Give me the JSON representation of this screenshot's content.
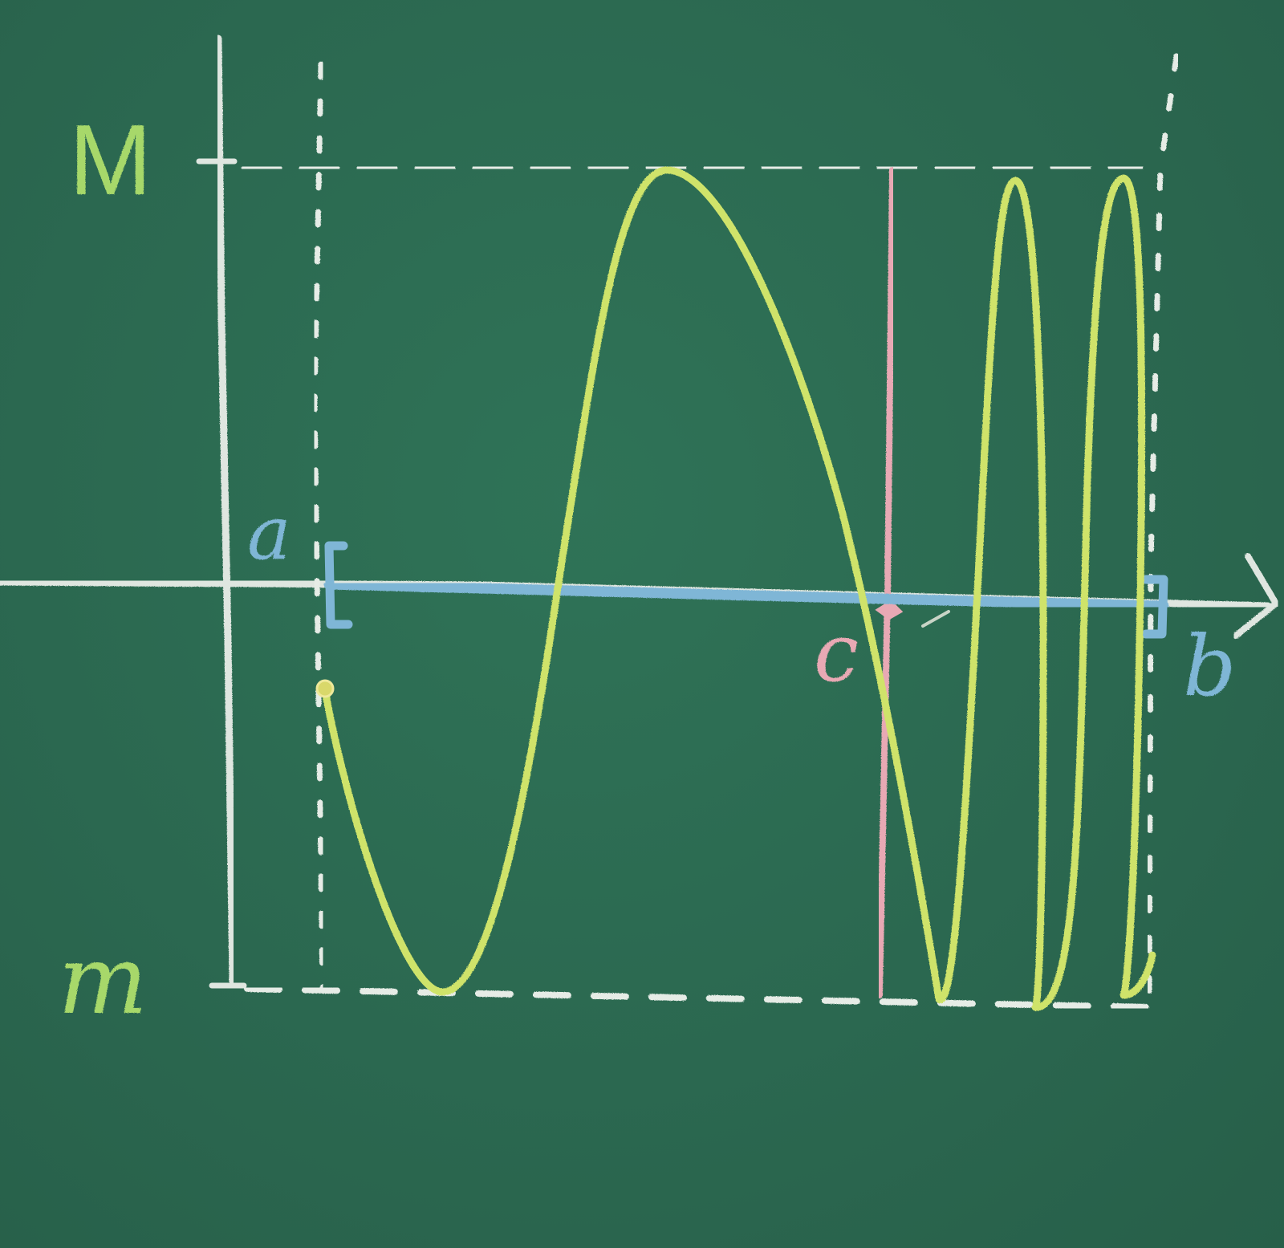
{
  "labels": {
    "upper_bound": "M",
    "lower_bound": "m",
    "interval_start": "a",
    "interval_end": "b",
    "point": "c"
  },
  "colors": {
    "board": "#2b6850",
    "axes": "#dfe6e0",
    "curve": "#cfe36a",
    "interval": "#7fb6d6",
    "point_c": "#e8a9b4",
    "bound_labels": "#a7d86a",
    "dashed_guides": "#e6ece6"
  }
}
